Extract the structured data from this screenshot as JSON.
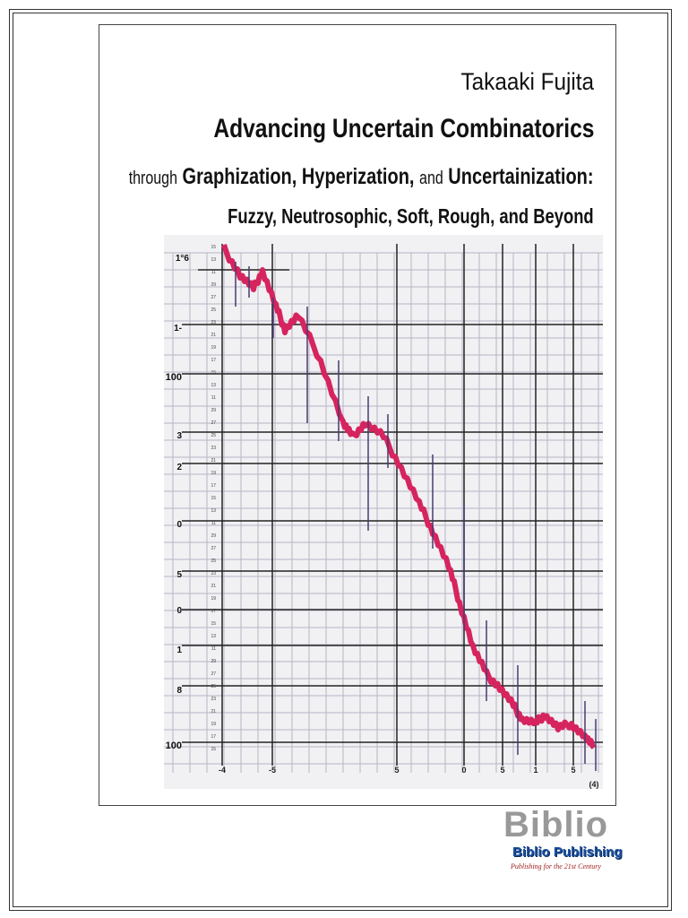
{
  "cover": {
    "author": "Takaaki Fujita",
    "title": "Advancing Uncertain Combinatorics",
    "subtitle_line1": {
      "w1": "through",
      "w2": "Graphization,",
      "w3": "Hyperization,",
      "w4": "and",
      "w5": "Uncertainization:"
    },
    "subtitle_line2": "Fuzzy, Neutrosophic, Soft, Rough, and Beyond"
  },
  "illustration": {
    "left_labels": [
      "1°6",
      "1-",
      "100",
      "3",
      "2",
      "0",
      "5",
      "0",
      "1",
      "8",
      "100"
    ],
    "bottom_labels": [
      "-4",
      "-5",
      "5",
      "0",
      "5",
      "1",
      "5",
      "(4)"
    ],
    "line_color": "#d6245e",
    "grid_color": "#222222"
  },
  "publisher": {
    "name": "Biblio Publishing",
    "watermark": "Biblio",
    "tagline": "Publishing for the 21st Century"
  }
}
